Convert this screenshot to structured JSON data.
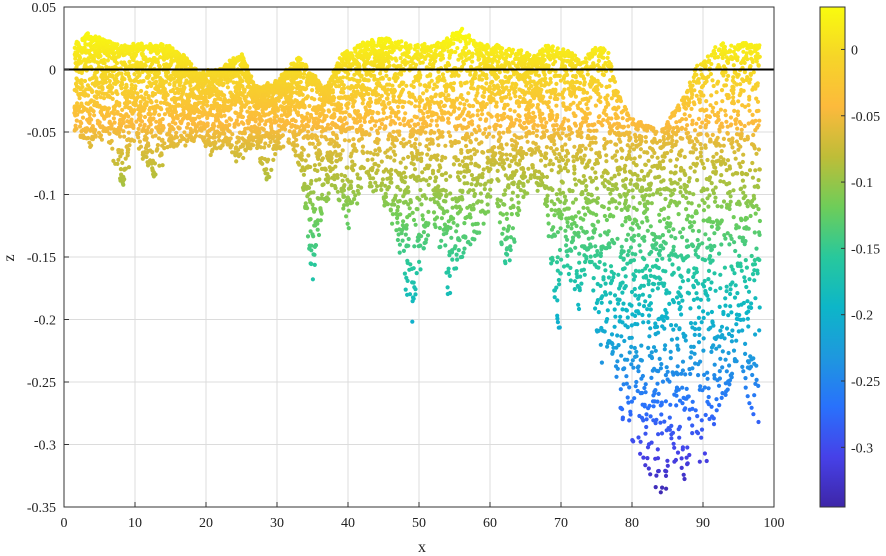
{
  "chart_data": {
    "type": "scatter",
    "title": "",
    "xlabel": "x",
    "ylabel": "z",
    "xlim": [
      0,
      100
    ],
    "ylim": [
      -0.35,
      0.05
    ],
    "xticks": [
      0,
      10,
      20,
      30,
      40,
      50,
      60,
      70,
      80,
      90,
      100
    ],
    "yticks": [
      0.05,
      0,
      -0.05,
      -0.1,
      -0.15,
      -0.2,
      -0.25,
      -0.3,
      -0.35
    ],
    "xtick_labels": [
      "0",
      "10",
      "20",
      "30",
      "40",
      "50",
      "60",
      "70",
      "80",
      "90",
      "100"
    ],
    "ytick_labels": [
      "0.05",
      "0",
      "-0.05",
      "-0.1",
      "-0.15",
      "-0.2",
      "-0.25",
      "-0.3",
      "-0.35"
    ],
    "grid": true,
    "reference_line": {
      "z": 0,
      "color": "#000000"
    },
    "colorbar": {
      "colormap": "parula",
      "placement": "right",
      "range": [
        -0.345,
        0.032
      ],
      "ticks": [
        0,
        -0.05,
        -0.1,
        -0.15,
        -0.2,
        -0.25,
        -0.3
      ],
      "tick_labels": [
        "0",
        "-0.05",
        "-0.1",
        "-0.15",
        "-0.2",
        "-0.25",
        "-0.3"
      ]
    },
    "x_extent": [
      1.5,
      98
    ],
    "upper_envelope": [
      [
        1.5,
        0.02
      ],
      [
        3,
        0.028
      ],
      [
        5,
        0.025
      ],
      [
        8,
        0.018
      ],
      [
        12,
        0.02
      ],
      [
        15,
        0.018
      ],
      [
        17,
        0.01
      ],
      [
        19,
        -0.004
      ],
      [
        22,
        0.0
      ],
      [
        25,
        0.012
      ],
      [
        27,
        -0.015
      ],
      [
        30,
        -0.01
      ],
      [
        32,
        0.003
      ],
      [
        33,
        0.01
      ],
      [
        35,
        -0.005
      ],
      [
        37,
        -0.015
      ],
      [
        39,
        0.01
      ],
      [
        42,
        0.02
      ],
      [
        45,
        0.025
      ],
      [
        48,
        0.02
      ],
      [
        50,
        0.018
      ],
      [
        53,
        0.02
      ],
      [
        56,
        0.032
      ],
      [
        58,
        0.02
      ],
      [
        61,
        0.018
      ],
      [
        64,
        0.015
      ],
      [
        66,
        0.01
      ],
      [
        68,
        0.018
      ],
      [
        71,
        0.015
      ],
      [
        73,
        0.005
      ],
      [
        75,
        0.018
      ],
      [
        76.5,
        0.015
      ],
      [
        78,
        -0.02
      ],
      [
        80,
        -0.04
      ],
      [
        82,
        -0.045
      ],
      [
        84,
        -0.05
      ],
      [
        86,
        -0.035
      ],
      [
        88,
        -0.015
      ],
      [
        89,
        0.002
      ],
      [
        90,
        0.005
      ],
      [
        92,
        0.02
      ],
      [
        94,
        0.018
      ],
      [
        96,
        0.02
      ],
      [
        98,
        0.018
      ]
    ],
    "lower_envelope": [
      [
        1.5,
        -0.05
      ],
      [
        4,
        -0.065
      ],
      [
        6,
        -0.055
      ],
      [
        8.5,
        -0.1
      ],
      [
        10,
        -0.055
      ],
      [
        12.5,
        -0.09
      ],
      [
        15,
        -0.065
      ],
      [
        17,
        -0.06
      ],
      [
        19,
        -0.055
      ],
      [
        21,
        -0.07
      ],
      [
        23,
        -0.06
      ],
      [
        24.5,
        -0.075
      ],
      [
        27,
        -0.06
      ],
      [
        28.5,
        -0.095
      ],
      [
        30,
        -0.065
      ],
      [
        32,
        -0.06
      ],
      [
        33.5,
        -0.085
      ],
      [
        35,
        -0.175
      ],
      [
        36.5,
        -0.11
      ],
      [
        38,
        -0.095
      ],
      [
        40,
        -0.13
      ],
      [
        42,
        -0.095
      ],
      [
        44,
        -0.1
      ],
      [
        46,
        -0.12
      ],
      [
        47.5,
        -0.16
      ],
      [
        49,
        -0.205
      ],
      [
        50.5,
        -0.15
      ],
      [
        52,
        -0.12
      ],
      [
        54,
        -0.185
      ],
      [
        55.5,
        -0.155
      ],
      [
        57,
        -0.14
      ],
      [
        59,
        -0.13
      ],
      [
        60.5,
        -0.1
      ],
      [
        62.5,
        -0.17
      ],
      [
        64,
        -0.12
      ],
      [
        66,
        -0.085
      ],
      [
        68,
        -0.12
      ],
      [
        69.5,
        -0.225
      ],
      [
        71,
        -0.165
      ],
      [
        72.5,
        -0.2
      ],
      [
        74,
        -0.15
      ],
      [
        75.5,
        -0.24
      ],
      [
        77,
        -0.22
      ],
      [
        78.5,
        -0.28
      ],
      [
        80,
        -0.3
      ],
      [
        81.5,
        -0.32
      ],
      [
        83,
        -0.34
      ],
      [
        84.5,
        -0.345
      ],
      [
        86,
        -0.315
      ],
      [
        87.5,
        -0.335
      ],
      [
        89,
        -0.305
      ],
      [
        90.5,
        -0.33
      ],
      [
        92,
        -0.27
      ],
      [
        93.5,
        -0.26
      ],
      [
        95,
        -0.23
      ],
      [
        96.5,
        -0.27
      ],
      [
        98,
        -0.29
      ]
    ]
  }
}
